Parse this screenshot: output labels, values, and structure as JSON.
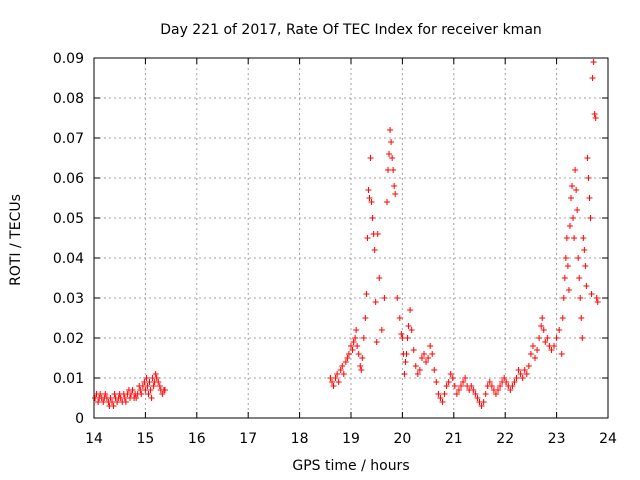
{
  "chart_data": {
    "type": "scatter",
    "title": "Day 221 of 2017, Rate Of TEC Index for receiver kman",
    "xlabel": "GPS time / hours",
    "ylabel": "ROTI / TECUs",
    "xlim": [
      14,
      24
    ],
    "ylim": [
      0,
      0.09
    ],
    "x_ticks": [
      "14",
      "15",
      "16",
      "17",
      "18",
      "19",
      "20",
      "21",
      "22",
      "23",
      "24"
    ],
    "y_ticks": [
      "0",
      "0.01",
      "0.02",
      "0.03",
      "0.04",
      "0.05",
      "0.06",
      "0.07",
      "0.08",
      "0.09"
    ],
    "grid": true,
    "marker": "plus",
    "color": "#ff0000",
    "points": [
      [
        14.02,
        0.005
      ],
      [
        14.05,
        0.006
      ],
      [
        14.08,
        0.004
      ],
      [
        14.1,
        0.005
      ],
      [
        14.12,
        0.006
      ],
      [
        14.15,
        0.005
      ],
      [
        14.18,
        0.004
      ],
      [
        14.2,
        0.005
      ],
      [
        14.22,
        0.006
      ],
      [
        14.25,
        0.005
      ],
      [
        14.28,
        0.004
      ],
      [
        14.3,
        0.003
      ],
      [
        14.32,
        0.005
      ],
      [
        14.35,
        0.004
      ],
      [
        14.38,
        0.003
      ],
      [
        14.4,
        0.006
      ],
      [
        14.42,
        0.005
      ],
      [
        14.45,
        0.004
      ],
      [
        14.48,
        0.005
      ],
      [
        14.5,
        0.006
      ],
      [
        14.52,
        0.005
      ],
      [
        14.55,
        0.004
      ],
      [
        14.58,
        0.006
      ],
      [
        14.6,
        0.005
      ],
      [
        14.62,
        0.004
      ],
      [
        14.65,
        0.006
      ],
      [
        14.68,
        0.007
      ],
      [
        14.7,
        0.005
      ],
      [
        14.72,
        0.006
      ],
      [
        14.75,
        0.007
      ],
      [
        14.78,
        0.005
      ],
      [
        14.8,
        0.006
      ],
      [
        14.82,
        0.005
      ],
      [
        14.85,
        0.006
      ],
      [
        14.88,
        0.008
      ],
      [
        14.9,
        0.007
      ],
      [
        14.92,
        0.006
      ],
      [
        14.95,
        0.008
      ],
      [
        14.98,
        0.009
      ],
      [
        15.0,
        0.007
      ],
      [
        15.02,
        0.01
      ],
      [
        15.04,
        0.008
      ],
      [
        15.06,
        0.006
      ],
      [
        15.08,
        0.009
      ],
      [
        15.1,
        0.007
      ],
      [
        15.12,
        0.005
      ],
      [
        15.14,
        0.01
      ],
      [
        15.16,
        0.008
      ],
      [
        15.18,
        0.009
      ],
      [
        15.2,
        0.011
      ],
      [
        15.22,
        0.01
      ],
      [
        15.25,
        0.009
      ],
      [
        15.28,
        0.008
      ],
      [
        15.3,
        0.007
      ],
      [
        15.33,
        0.006
      ],
      [
        15.36,
        0.007
      ],
      [
        15.38,
        0.007
      ],
      [
        18.6,
        0.01
      ],
      [
        18.63,
        0.009
      ],
      [
        18.66,
        0.008
      ],
      [
        18.7,
        0.01
      ],
      [
        18.73,
        0.011
      ],
      [
        18.76,
        0.009
      ],
      [
        18.8,
        0.012
      ],
      [
        18.83,
        0.013
      ],
      [
        18.86,
        0.011
      ],
      [
        18.9,
        0.014
      ],
      [
        18.93,
        0.015
      ],
      [
        18.96,
        0.016
      ],
      [
        19.0,
        0.018
      ],
      [
        19.03,
        0.017
      ],
      [
        19.05,
        0.019
      ],
      [
        19.08,
        0.02
      ],
      [
        19.1,
        0.022
      ],
      [
        19.12,
        0.018
      ],
      [
        19.15,
        0.016
      ],
      [
        19.18,
        0.013
      ],
      [
        19.2,
        0.012
      ],
      [
        19.22,
        0.015
      ],
      [
        19.25,
        0.02
      ],
      [
        19.28,
        0.025
      ],
      [
        19.3,
        0.031
      ],
      [
        19.32,
        0.045
      ],
      [
        19.34,
        0.057
      ],
      [
        19.36,
        0.055
      ],
      [
        19.38,
        0.065
      ],
      [
        19.4,
        0.054
      ],
      [
        19.42,
        0.05
      ],
      [
        19.44,
        0.046
      ],
      [
        19.46,
        0.042
      ],
      [
        19.48,
        0.029
      ],
      [
        19.5,
        0.019
      ],
      [
        19.52,
        0.046
      ],
      [
        19.55,
        0.035
      ],
      [
        19.6,
        0.022
      ],
      [
        19.65,
        0.03
      ],
      [
        19.7,
        0.054
      ],
      [
        19.72,
        0.062
      ],
      [
        19.74,
        0.066
      ],
      [
        19.76,
        0.072
      ],
      [
        19.78,
        0.069
      ],
      [
        19.8,
        0.065
      ],
      [
        19.82,
        0.062
      ],
      [
        19.84,
        0.058
      ],
      [
        19.86,
        0.056
      ],
      [
        19.9,
        0.03
      ],
      [
        19.95,
        0.025
      ],
      [
        19.98,
        0.021
      ],
      [
        20.0,
        0.02
      ],
      [
        20.02,
        0.016
      ],
      [
        20.04,
        0.011
      ],
      [
        20.06,
        0.014
      ],
      [
        20.08,
        0.016
      ],
      [
        20.1,
        0.02
      ],
      [
        20.12,
        0.023
      ],
      [
        20.15,
        0.027
      ],
      [
        20.18,
        0.022
      ],
      [
        20.22,
        0.017
      ],
      [
        20.26,
        0.013
      ],
      [
        20.3,
        0.011
      ],
      [
        20.34,
        0.012
      ],
      [
        20.38,
        0.015
      ],
      [
        20.42,
        0.016
      ],
      [
        20.46,
        0.014
      ],
      [
        20.5,
        0.015
      ],
      [
        20.54,
        0.018
      ],
      [
        20.58,
        0.016
      ],
      [
        20.62,
        0.012
      ],
      [
        20.66,
        0.009
      ],
      [
        20.7,
        0.006
      ],
      [
        20.74,
        0.005
      ],
      [
        20.78,
        0.004
      ],
      [
        20.82,
        0.006
      ],
      [
        20.86,
        0.008
      ],
      [
        20.9,
        0.009
      ],
      [
        20.94,
        0.011
      ],
      [
        20.98,
        0.01
      ],
      [
        21.02,
        0.008
      ],
      [
        21.06,
        0.006
      ],
      [
        21.1,
        0.007
      ],
      [
        21.14,
        0.008
      ],
      [
        21.18,
        0.009
      ],
      [
        21.22,
        0.01
      ],
      [
        21.26,
        0.008
      ],
      [
        21.3,
        0.007
      ],
      [
        21.34,
        0.008
      ],
      [
        21.38,
        0.007
      ],
      [
        21.42,
        0.006
      ],
      [
        21.46,
        0.005
      ],
      [
        21.5,
        0.004
      ],
      [
        21.54,
        0.003
      ],
      [
        21.58,
        0.004
      ],
      [
        21.62,
        0.006
      ],
      [
        21.66,
        0.008
      ],
      [
        21.7,
        0.009
      ],
      [
        21.74,
        0.008
      ],
      [
        21.78,
        0.007
      ],
      [
        21.82,
        0.006
      ],
      [
        21.86,
        0.007
      ],
      [
        21.9,
        0.008
      ],
      [
        21.94,
        0.009
      ],
      [
        21.98,
        0.01
      ],
      [
        22.02,
        0.009
      ],
      [
        22.06,
        0.008
      ],
      [
        22.1,
        0.007
      ],
      [
        22.14,
        0.008
      ],
      [
        22.18,
        0.009
      ],
      [
        22.22,
        0.01
      ],
      [
        22.26,
        0.012
      ],
      [
        22.3,
        0.011
      ],
      [
        22.34,
        0.01
      ],
      [
        22.38,
        0.012
      ],
      [
        22.42,
        0.011
      ],
      [
        22.46,
        0.013
      ],
      [
        22.5,
        0.016
      ],
      [
        22.54,
        0.018
      ],
      [
        22.58,
        0.015
      ],
      [
        22.62,
        0.017
      ],
      [
        22.66,
        0.02
      ],
      [
        22.7,
        0.023
      ],
      [
        22.72,
        0.025
      ],
      [
        22.75,
        0.022
      ],
      [
        22.78,
        0.019
      ],
      [
        22.82,
        0.02
      ],
      [
        22.86,
        0.018
      ],
      [
        22.9,
        0.017
      ],
      [
        22.95,
        0.018
      ],
      [
        23.0,
        0.02
      ],
      [
        23.05,
        0.022
      ],
      [
        23.1,
        0.016
      ],
      [
        23.12,
        0.025
      ],
      [
        23.14,
        0.03
      ],
      [
        23.16,
        0.035
      ],
      [
        23.18,
        0.04
      ],
      [
        23.2,
        0.045
      ],
      [
        23.22,
        0.038
      ],
      [
        23.24,
        0.032
      ],
      [
        23.26,
        0.048
      ],
      [
        23.28,
        0.055
      ],
      [
        23.3,
        0.058
      ],
      [
        23.32,
        0.05
      ],
      [
        23.34,
        0.045
      ],
      [
        23.36,
        0.062
      ],
      [
        23.38,
        0.057
      ],
      [
        23.4,
        0.052
      ],
      [
        23.42,
        0.04
      ],
      [
        23.44,
        0.035
      ],
      [
        23.46,
        0.03
      ],
      [
        23.48,
        0.025
      ],
      [
        23.5,
        0.02
      ],
      [
        23.52,
        0.045
      ],
      [
        23.54,
        0.042
      ],
      [
        23.56,
        0.038
      ],
      [
        23.58,
        0.033
      ],
      [
        23.6,
        0.065
      ],
      [
        23.62,
        0.06
      ],
      [
        23.64,
        0.055
      ],
      [
        23.66,
        0.05
      ],
      [
        23.68,
        0.031
      ],
      [
        23.7,
        0.085
      ],
      [
        23.72,
        0.089
      ],
      [
        23.74,
        0.076
      ],
      [
        23.76,
        0.075
      ],
      [
        23.78,
        0.03
      ],
      [
        23.8,
        0.029
      ]
    ]
  }
}
